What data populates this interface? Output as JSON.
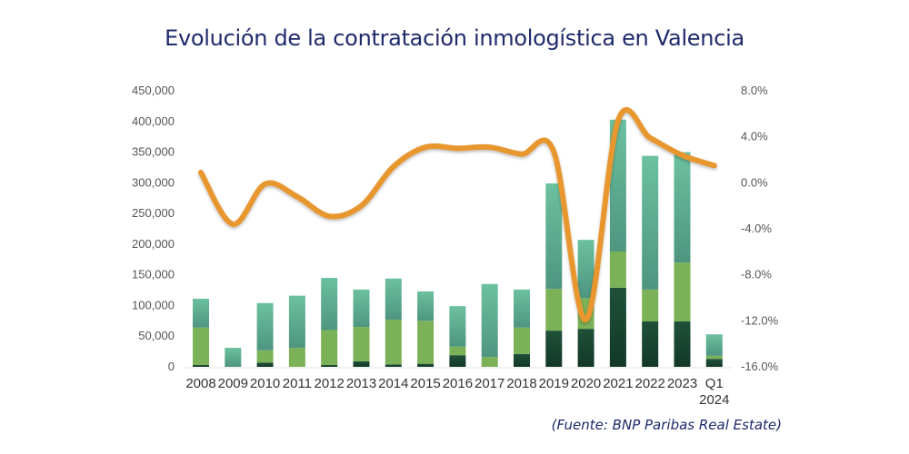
{
  "chart_data": {
    "type": "bar",
    "stacked": true,
    "title": "Evolución de la contratación inmologística en Valencia",
    "source": "(Fuente: BNP Paribas Real Estate)",
    "categories": [
      "2008",
      "2009",
      "2010",
      "2011",
      "2012",
      "2013",
      "2014",
      "2015",
      "2016",
      "2017",
      "2018",
      "2019",
      "2020",
      "2021",
      "2022",
      "2023",
      "Q1 2024"
    ],
    "category_lines": [
      [
        "2008"
      ],
      [
        "2009"
      ],
      [
        "2010"
      ],
      [
        "2011"
      ],
      [
        "2012"
      ],
      [
        "2013"
      ],
      [
        "2014"
      ],
      [
        "2015"
      ],
      [
        "2016"
      ],
      [
        "2017"
      ],
      [
        "2018"
      ],
      [
        "2019"
      ],
      [
        "2020"
      ],
      [
        "2021"
      ],
      [
        "2022"
      ],
      [
        "2023"
      ],
      [
        "Q1",
        "2024"
      ]
    ],
    "series": [
      {
        "name": "dark-green segment",
        "color": "#1b4a35",
        "values": [
          3000,
          0,
          7000,
          0,
          3000,
          9000,
          4000,
          5000,
          19000,
          0,
          21000,
          59000,
          62000,
          129000,
          74000,
          74000,
          13000
        ]
      },
      {
        "name": "light-green segment",
        "color": "#7cb257",
        "values": [
          61000,
          0,
          20000,
          31000,
          57000,
          56000,
          73000,
          70000,
          14000,
          16000,
          43000,
          68000,
          50000,
          59000,
          52000,
          96000,
          5000
        ]
      },
      {
        "name": "teal segment",
        "color": "#5fae92",
        "values": [
          47000,
          31000,
          77000,
          85000,
          85000,
          61000,
          67000,
          48000,
          66000,
          119000,
          62000,
          172000,
          95000,
          215000,
          218000,
          180000,
          35000
        ]
      }
    ],
    "line_series": {
      "name": "growth rate",
      "color": "#e8962e",
      "axis": "right",
      "values": [
        0.9,
        -3.6,
        -0.1,
        -1.2,
        -2.9,
        -2.0,
        1.4,
        3.1,
        3.0,
        3.1,
        2.5,
        2.7,
        -11.9,
        5.4,
        3.9,
        2.4,
        1.5
      ]
    },
    "y_left": {
      "ylim": [
        0,
        450000
      ],
      "ticks": [
        0,
        50000,
        100000,
        150000,
        200000,
        250000,
        300000,
        350000,
        400000,
        450000
      ],
      "tick_labels": [
        "0",
        "50,000",
        "100,000",
        "150,000",
        "200,000",
        "250,000",
        "300,000",
        "350,000",
        "400,000",
        "450,000"
      ]
    },
    "y_right": {
      "ylim": [
        -16,
        8
      ],
      "ticks": [
        8,
        4,
        0,
        -4,
        -8,
        -12,
        -16
      ],
      "tick_labels": [
        "8.0%",
        "4.0%",
        "0.0%",
        "-4.0%",
        "-8.0%",
        "-12.0%",
        "-16.0%"
      ]
    },
    "grid": false,
    "legend": "none"
  }
}
